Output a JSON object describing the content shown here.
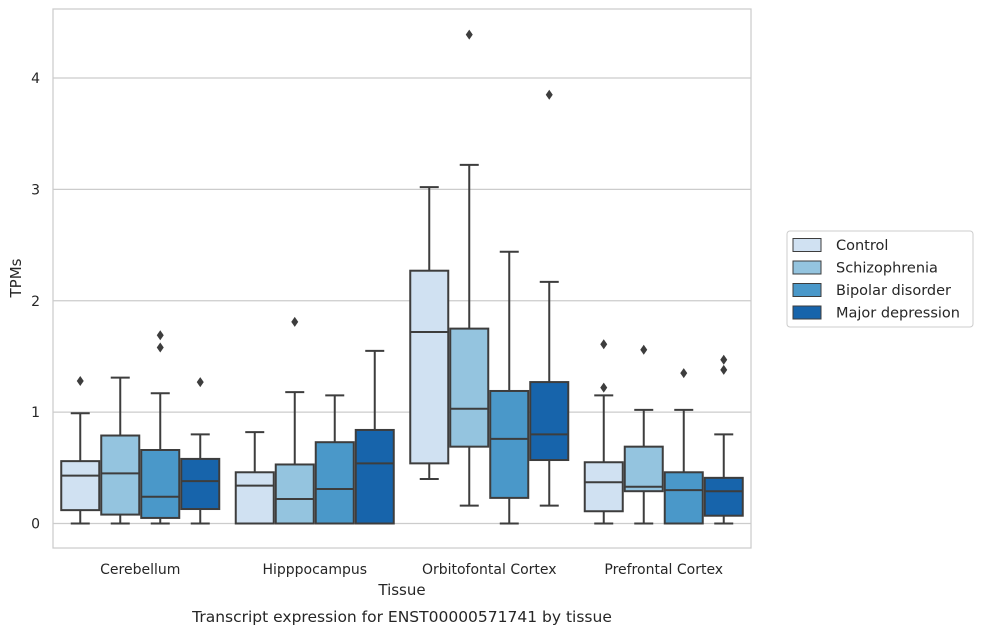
{
  "caption": "Transcript expression for ENST00000571741 by tissue",
  "chart_data": {
    "type": "box",
    "xlabel": "Tissue",
    "ylabel": "TPMs",
    "ylim": [
      -0.22,
      4.62
    ],
    "yticks": [
      0,
      1,
      2,
      3,
      4
    ],
    "grid": "horizontal",
    "legend_position": "right",
    "categories": [
      "Cerebellum",
      "Hipppocampus",
      "Orbitofontal Cortex",
      "Prefrontal Cortex"
    ],
    "series": [
      {
        "name": "Control",
        "color": "#d0e1f2",
        "boxes": [
          {
            "whislo": 0.0,
            "q1": 0.12,
            "med": 0.43,
            "q3": 0.56,
            "whishi": 0.99,
            "fliers": [
              1.28
            ]
          },
          {
            "whislo": 0.0,
            "q1": 0.0,
            "med": 0.34,
            "q3": 0.46,
            "whishi": 0.82,
            "fliers": []
          },
          {
            "whislo": 0.4,
            "q1": 0.54,
            "med": 1.72,
            "q3": 2.27,
            "whishi": 3.02,
            "fliers": []
          },
          {
            "whislo": 0.0,
            "q1": 0.11,
            "med": 0.37,
            "q3": 0.55,
            "whishi": 1.15,
            "fliers": [
              1.22,
              1.61
            ]
          }
        ]
      },
      {
        "name": "Schizophrenia",
        "color": "#94c4df",
        "boxes": [
          {
            "whislo": 0.0,
            "q1": 0.08,
            "med": 0.45,
            "q3": 0.79,
            "whishi": 1.31,
            "fliers": []
          },
          {
            "whislo": 0.0,
            "q1": 0.0,
            "med": 0.22,
            "q3": 0.53,
            "whishi": 1.18,
            "fliers": [
              1.81
            ]
          },
          {
            "whislo": 0.16,
            "q1": 0.69,
            "med": 1.03,
            "q3": 1.75,
            "whishi": 3.22,
            "fliers": [
              4.39
            ]
          },
          {
            "whislo": 0.0,
            "q1": 0.29,
            "med": 0.33,
            "q3": 0.69,
            "whishi": 1.02,
            "fliers": [
              1.56
            ]
          }
        ]
      },
      {
        "name": "Bipolar disorder",
        "color": "#4a98c9",
        "boxes": [
          {
            "whislo": 0.0,
            "q1": 0.05,
            "med": 0.24,
            "q3": 0.66,
            "whishi": 1.17,
            "fliers": [
              1.58,
              1.69
            ]
          },
          {
            "whislo": 0.0,
            "q1": 0.0,
            "med": 0.31,
            "q3": 0.73,
            "whishi": 1.15,
            "fliers": []
          },
          {
            "whislo": 0.0,
            "q1": 0.23,
            "med": 0.76,
            "q3": 1.19,
            "whishi": 2.44,
            "fliers": []
          },
          {
            "whislo": 0.0,
            "q1": 0.0,
            "med": 0.3,
            "q3": 0.46,
            "whishi": 1.02,
            "fliers": [
              1.35
            ]
          }
        ]
      },
      {
        "name": "Major depression",
        "color": "#1764ab",
        "boxes": [
          {
            "whislo": 0.0,
            "q1": 0.13,
            "med": 0.38,
            "q3": 0.58,
            "whishi": 0.8,
            "fliers": [
              1.27
            ]
          },
          {
            "whislo": 0.0,
            "q1": 0.0,
            "med": 0.54,
            "q3": 0.84,
            "whishi": 1.55,
            "fliers": []
          },
          {
            "whislo": 0.16,
            "q1": 0.57,
            "med": 0.8,
            "q3": 1.27,
            "whishi": 2.17,
            "fliers": [
              3.85
            ]
          },
          {
            "whislo": 0.0,
            "q1": 0.07,
            "med": 0.29,
            "q3": 0.41,
            "whishi": 0.8,
            "fliers": [
              1.38,
              1.47
            ]
          }
        ]
      }
    ]
  }
}
